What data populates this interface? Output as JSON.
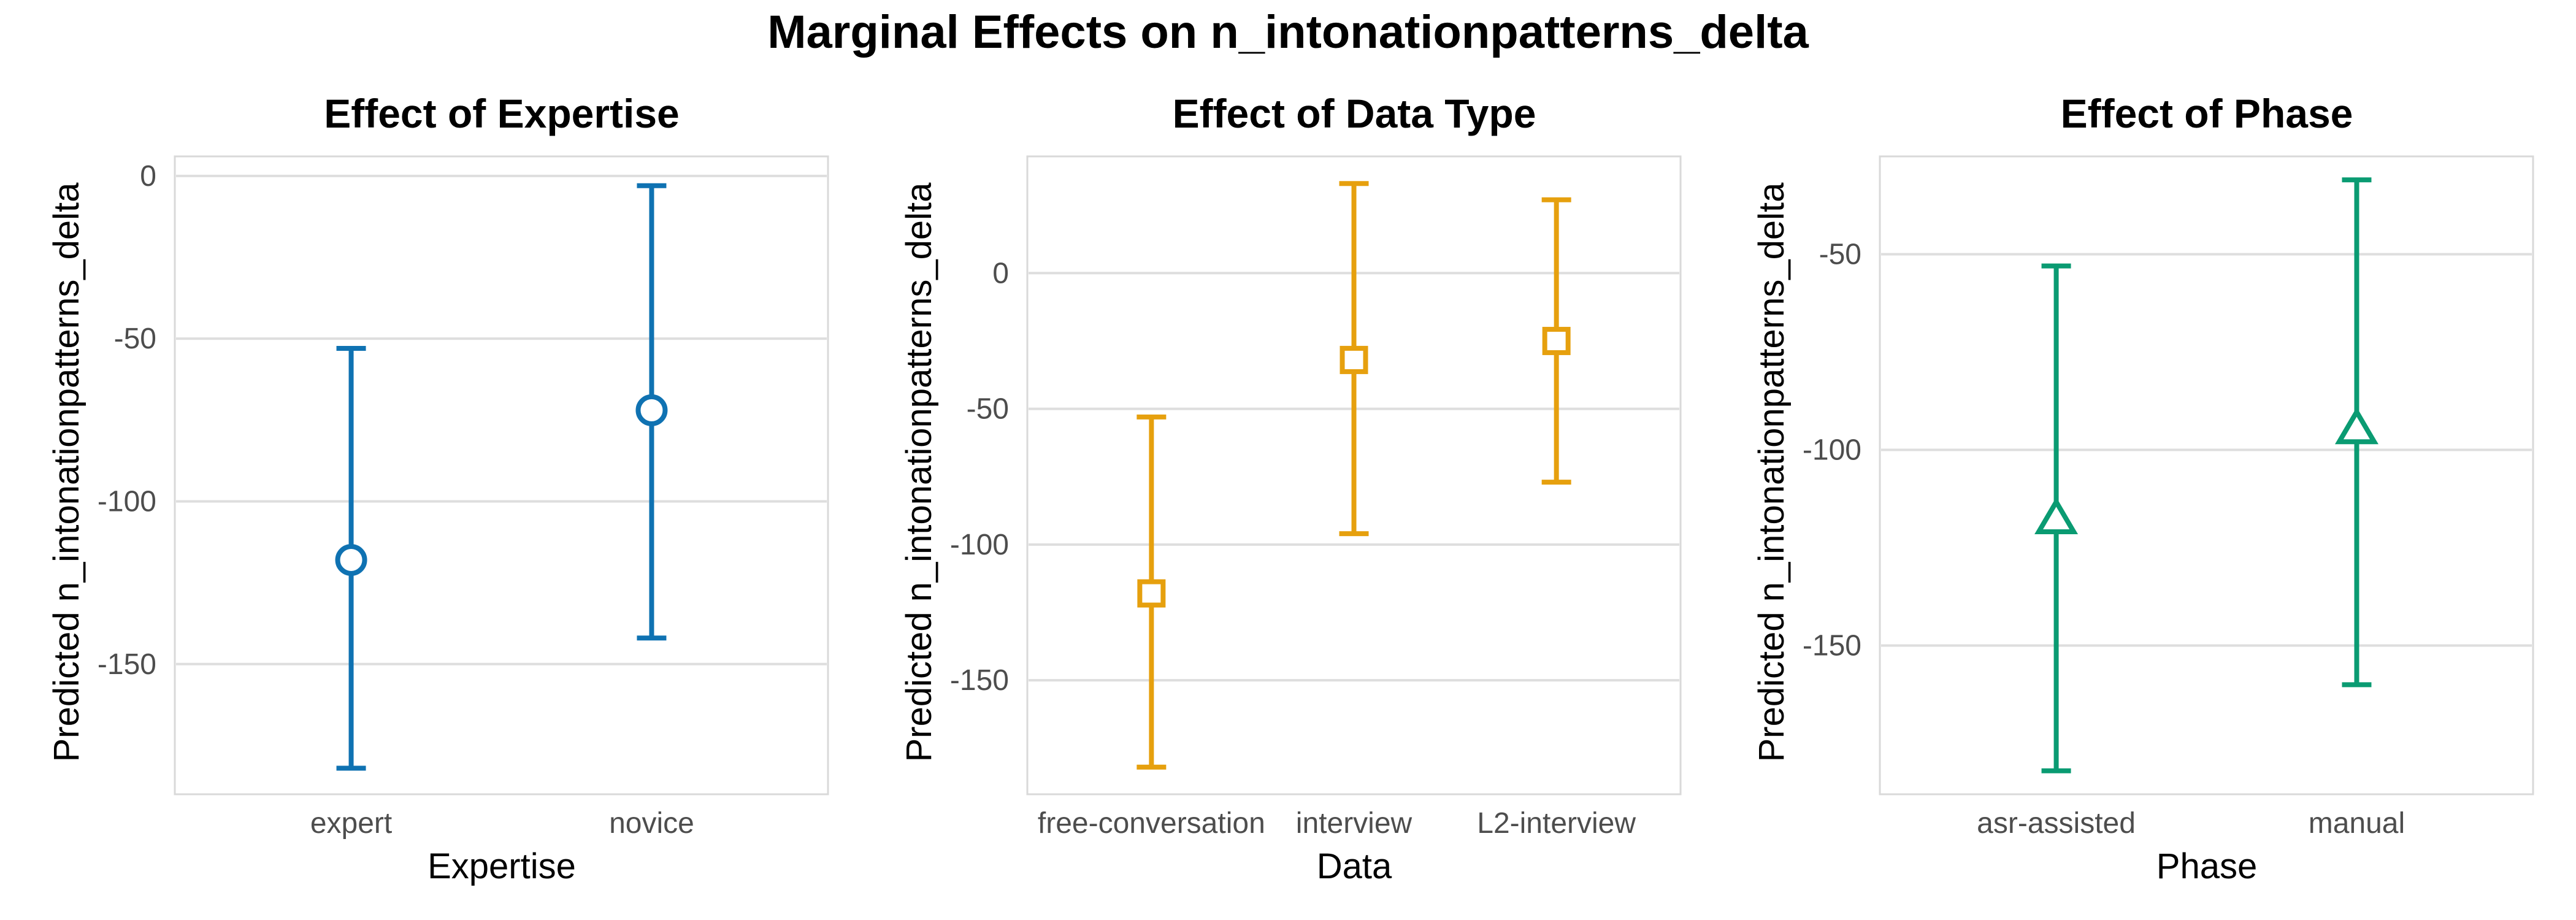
{
  "title": "Marginal Effects on n_intonationpatterns_delta",
  "chart_data": [
    {
      "type": "errorbar",
      "title": "Effect of Expertise",
      "xlabel": "Expertise",
      "ylabel": "Predicted n_intonationpatterns_delta",
      "categories": [
        "expert",
        "novice"
      ],
      "estimates": [
        -118,
        -72
      ],
      "lower": [
        -182,
        -142
      ],
      "upper": [
        -53,
        -3
      ],
      "ylim": [
        -190,
        6
      ],
      "yticks": [
        0,
        -50,
        -100,
        -150
      ],
      "marker": "circle",
      "color": "#0F72B2",
      "grid": true
    },
    {
      "type": "errorbar",
      "title": "Effect of Data Type",
      "xlabel": "Data",
      "ylabel": "Predicted n_intonationpatterns_delta",
      "categories": [
        "free-conversation",
        "interview",
        "L2-interview"
      ],
      "estimates": [
        -118,
        -32,
        -25
      ],
      "lower": [
        -182,
        -96,
        -77
      ],
      "upper": [
        -53,
        33,
        27
      ],
      "ylim": [
        -192,
        43
      ],
      "yticks": [
        0,
        -50,
        -100,
        -150
      ],
      "marker": "square",
      "color": "#E6A00E",
      "grid": true
    },
    {
      "type": "errorbar",
      "title": "Effect of Phase",
      "xlabel": "Phase",
      "ylabel": "Predicted n_intonationpatterns_delta",
      "categories": [
        "asr-assisted",
        "manual"
      ],
      "estimates": [
        -118,
        -95
      ],
      "lower": [
        -182,
        -160
      ],
      "upper": [
        -53,
        -31
      ],
      "ylim": [
        -188,
        -25
      ],
      "yticks": [
        -50,
        -100,
        -150
      ],
      "marker": "triangle",
      "color": "#0A9B72",
      "grid": true
    }
  ]
}
